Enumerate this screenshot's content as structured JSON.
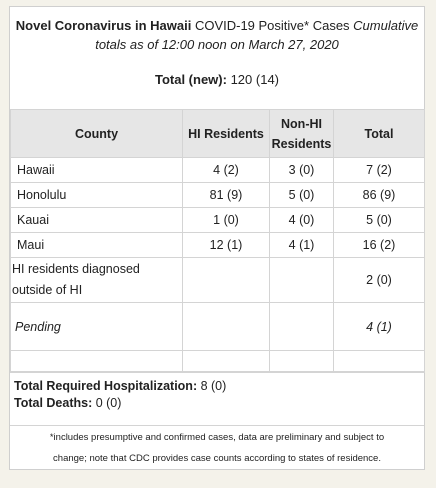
{
  "header": {
    "title_bold": "Novel Coronavirus in Hawaii",
    "title_rest": " COVID-19 Positive* Cases ",
    "title_italic": "Cumulative",
    "subtitle": "totals as of 12:00 noon on March 27, 2020",
    "total_label": "Total (new):",
    "total_value": " 120 (14)"
  },
  "table": {
    "columns": {
      "county": "County",
      "hi_residents": "HI Residents",
      "non_hi_line1": "Non-HI",
      "non_hi_line2": "Residents",
      "total": "Total"
    },
    "rows": [
      {
        "county": "Hawaii",
        "hi": "4 (2)",
        "non_hi": "3 (0)",
        "total": "7 (2)"
      },
      {
        "county": "Honolulu",
        "hi": "81 (9)",
        "non_hi": "5 (0)",
        "total": "86 (9)"
      },
      {
        "county": "Kauai",
        "hi": "1 (0)",
        "non_hi": "4 (0)",
        "total": "5 (0)"
      },
      {
        "county": "Maui",
        "hi": "12 (1)",
        "non_hi": "4 (1)",
        "total": "16 (2)"
      }
    ],
    "outside": {
      "line1": "HI residents diagnosed",
      "line2": "outside of HI",
      "hi": "",
      "non_hi": "",
      "total": "2 (0)"
    },
    "pending": {
      "label": "Pending",
      "hi": "",
      "non_hi": "",
      "total": "4 (1)"
    }
  },
  "footer": {
    "hosp_label": "Total Required Hospitalization:",
    "hosp_value": " 8 (0)",
    "deaths_label": "Total Deaths:",
    "deaths_value": " 0 (0)",
    "note_line1": "*includes presumptive and confirmed cases, data are preliminary and subject to",
    "note_line2": "change; note that CDC provides case counts according to states of residence."
  }
}
